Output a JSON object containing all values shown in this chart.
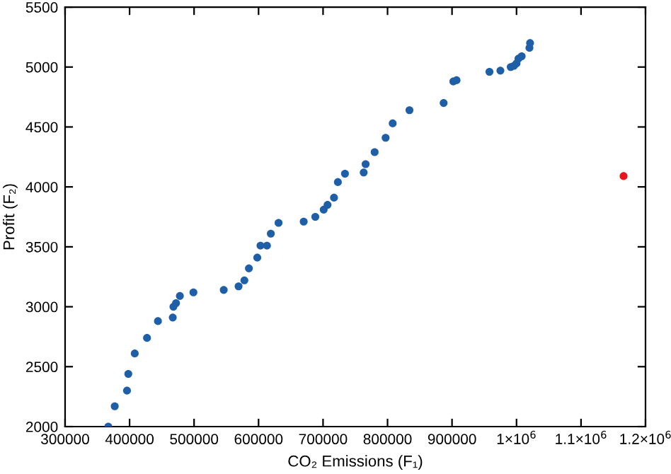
{
  "chart_data": {
    "type": "scatter",
    "xlabel": "CO₂ Emissions (F₁)",
    "ylabel": "Profit (F₂)",
    "xlim": [
      300000,
      1200000
    ],
    "ylim": [
      2000,
      5500
    ],
    "xticks": [
      300000,
      400000,
      500000,
      600000,
      700000,
      800000,
      900000,
      {
        "value": 1000000,
        "label": "1×10$^{6}$"
      },
      {
        "value": 1100000,
        "label": "1.1×10$^{6}$"
      },
      {
        "value": 1200000,
        "label": "1.2×10$^{6}$"
      }
    ],
    "yticks": [
      2000,
      2500,
      3000,
      3500,
      4000,
      4500,
      5000,
      5500
    ],
    "grid": false,
    "marker": "circle",
    "series": [
      {
        "color": "#1f5fa8",
        "x": [
          367000,
          377000,
          396000,
          398000,
          408000,
          427000,
          444000,
          467000,
          468000,
          472000,
          478000,
          499000,
          546000,
          569000,
          578000,
          585000,
          598000,
          603000,
          613000,
          619000,
          631000,
          670000,
          688000,
          701000,
          707000,
          717000,
          723000,
          734000,
          763000,
          766000,
          780000,
          797000,
          808000,
          834000,
          887000,
          902000,
          907000,
          958000,
          975000,
          991000,
          996000,
          1000000,
          1003000,
          1008000,
          1020000,
          1021000
        ],
        "values": [
          2000,
          2170,
          2300,
          2440,
          2610,
          2740,
          2880,
          2910,
          3000,
          3030,
          3090,
          3120,
          3140,
          3170,
          3220,
          3320,
          3410,
          3510,
          3510,
          3610,
          3700,
          3710,
          3750,
          3810,
          3850,
          3910,
          4040,
          4110,
          4120,
          4190,
          4290,
          4410,
          4530,
          4640,
          4700,
          4880,
          4890,
          4960,
          4970,
          5000,
          5010,
          5030,
          5070,
          5090,
          5160,
          5200
        ]
      },
      {
        "color": "#e8141c",
        "x": [
          1166000
        ],
        "values": [
          4090
        ]
      }
    ]
  }
}
